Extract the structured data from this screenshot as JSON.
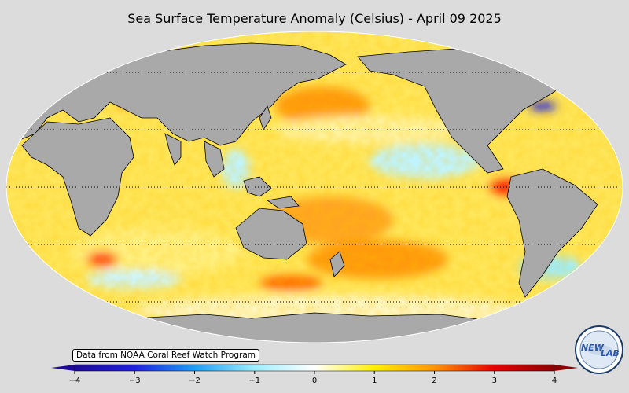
{
  "title": "Sea Surface Temperature Anomaly (Celsius) - April 09 2025",
  "attribution": "Data from NOAA Coral Reef Watch Program",
  "colorbar": {
    "min": -4,
    "max": 4,
    "ticks": [
      {
        "value": -4,
        "label": "−4"
      },
      {
        "value": -3,
        "label": "−3"
      },
      {
        "value": -2,
        "label": "−2"
      },
      {
        "value": -1,
        "label": "−1"
      },
      {
        "value": 0,
        "label": "0"
      },
      {
        "value": 1,
        "label": "1"
      },
      {
        "value": 2,
        "label": "2"
      },
      {
        "value": 3,
        "label": "3"
      },
      {
        "value": 4,
        "label": "4"
      }
    ],
    "stops": [
      {
        "value": -4,
        "color": "#1e0a96"
      },
      {
        "value": -3,
        "color": "#2020e0"
      },
      {
        "value": -2,
        "color": "#1f9df5"
      },
      {
        "value": -1,
        "color": "#9eeeff"
      },
      {
        "value": 0,
        "color": "#ffffff"
      },
      {
        "value": 1,
        "color": "#fff000"
      },
      {
        "value": 2,
        "color": "#ff9400"
      },
      {
        "value": 3,
        "color": "#e60000"
      },
      {
        "value": 4,
        "color": "#8b0000"
      }
    ]
  },
  "logo": {
    "text_left": "NEW",
    "text_right": "LAB"
  },
  "colors": {
    "land": "#a9a9a9",
    "background": "#dcdcdc",
    "graticule": "#000000"
  }
}
